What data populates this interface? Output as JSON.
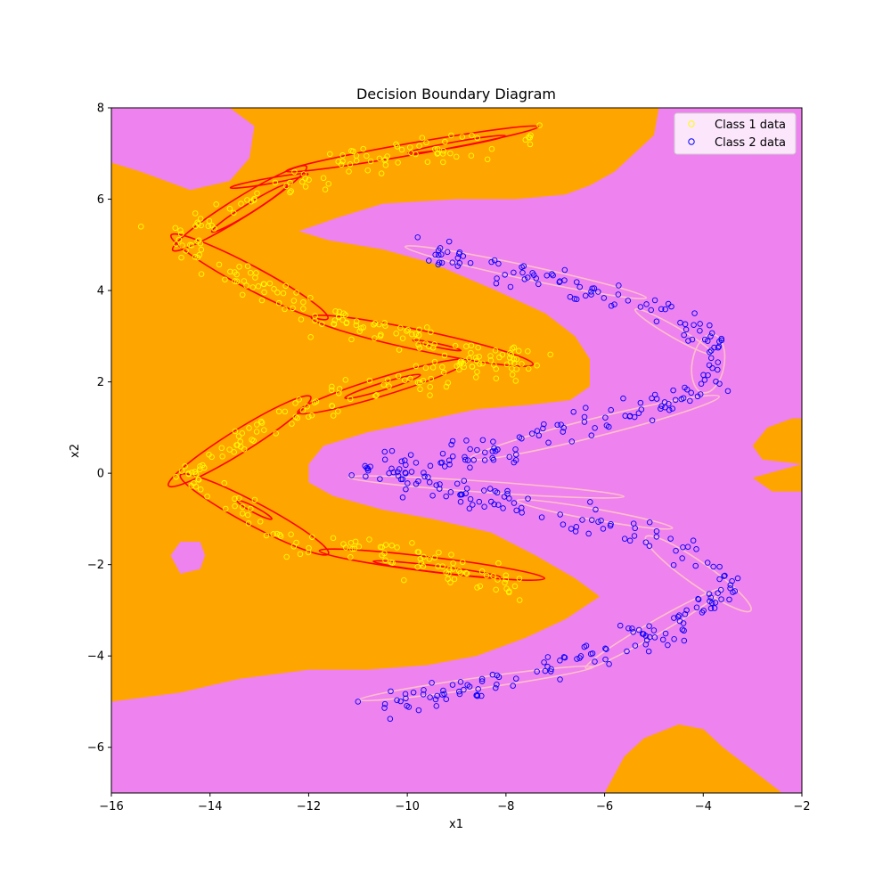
{
  "chart_data": {
    "type": "scatter",
    "title": "Decision Boundary Diagram",
    "xlabel": "x1",
    "ylabel": "x2",
    "xlim": [
      -16,
      -2
    ],
    "ylim": [
      -7,
      8
    ],
    "xticks": [
      -16,
      -14,
      -12,
      -10,
      -8,
      -6,
      -4,
      -2
    ],
    "yticks": [
      -6,
      -4,
      -2,
      0,
      2,
      4,
      6,
      8
    ],
    "xtick_labels": [
      "−16",
      "−14",
      "−12",
      "−10",
      "−8",
      "−6",
      "−4",
      "−2"
    ],
    "ytick_labels": [
      "−6",
      "−4",
      "−2",
      "0",
      "2",
      "4",
      "6",
      "8"
    ],
    "grid": false,
    "legend_position": "top-right",
    "background_color": "#ee82ee",
    "region_colors": {
      "class1": "#ffa500",
      "class2": "#ee82ee"
    },
    "class1_regions": [
      [
        [
          -16,
          6.8
        ],
        [
          -15.4,
          6.6
        ],
        [
          -14.9,
          6.4
        ],
        [
          -14.4,
          6.2
        ],
        [
          -13.6,
          6.4
        ],
        [
          -13.2,
          6.9
        ],
        [
          -13.1,
          7.6
        ],
        [
          -13.6,
          8
        ],
        [
          -4.9,
          8
        ],
        [
          -5.0,
          7.4
        ],
        [
          -5.8,
          6.6
        ],
        [
          -6.3,
          6.3
        ],
        [
          -6.8,
          6.1
        ],
        [
          -7.8,
          6.0
        ],
        [
          -9.0,
          6.0
        ],
        [
          -10.5,
          5.9
        ],
        [
          -11.4,
          5.6
        ],
        [
          -12.2,
          5.3
        ],
        [
          -11.6,
          5.1
        ],
        [
          -10.5,
          4.9
        ],
        [
          -9.5,
          4.6
        ],
        [
          -8.2,
          4.0
        ],
        [
          -7.2,
          3.5
        ],
        [
          -6.6,
          3.0
        ],
        [
          -6.3,
          2.5
        ],
        [
          -6.3,
          1.9
        ],
        [
          -6.7,
          1.6
        ],
        [
          -7.5,
          1.5
        ],
        [
          -8.6,
          1.4
        ],
        [
          -9.9,
          1.1
        ],
        [
          -10.8,
          0.9
        ],
        [
          -11.7,
          0.6
        ],
        [
          -12.0,
          0.2
        ],
        [
          -12.0,
          -0.2
        ],
        [
          -11.5,
          -0.5
        ],
        [
          -10.5,
          -0.8
        ],
        [
          -9.5,
          -1.0
        ],
        [
          -8.3,
          -1.3
        ],
        [
          -7.4,
          -1.8
        ],
        [
          -6.6,
          -2.3
        ],
        [
          -6.1,
          -2.7
        ],
        [
          -6.8,
          -3.2
        ],
        [
          -7.6,
          -3.6
        ],
        [
          -8.6,
          -4.0
        ],
        [
          -9.6,
          -4.2
        ],
        [
          -10.8,
          -4.3
        ],
        [
          -12.0,
          -4.3
        ],
        [
          -13.4,
          -4.5
        ],
        [
          -14.6,
          -4.8
        ],
        [
          -16,
          -5.0
        ]
      ],
      [
        [
          -16,
          -5.0
        ],
        [
          -16,
          6.8
        ],
        [
          -16,
          -5.0
        ]
      ],
      [
        [
          -2,
          0.2
        ],
        [
          -2.8,
          0.3
        ],
        [
          -3.0,
          0.6
        ],
        [
          -2.7,
          1.0
        ],
        [
          -2.2,
          1.2
        ],
        [
          -2,
          1.2
        ],
        [
          -2,
          -0.4
        ],
        [
          -2.6,
          -0.4
        ],
        [
          -3.0,
          -0.1
        ]
      ],
      [
        [
          -6.0,
          -7
        ],
        [
          -5.6,
          -6.2
        ],
        [
          -5.2,
          -5.8
        ],
        [
          -4.5,
          -5.5
        ],
        [
          -4.0,
          -5.6
        ],
        [
          -3.6,
          -6.0
        ],
        [
          -3.0,
          -6.5
        ],
        [
          -2.4,
          -7
        ]
      ]
    ],
    "class2_islands": [
      [
        [
          -14.8,
          -1.8
        ],
        [
          -14.6,
          -1.5
        ],
        [
          -14.2,
          -1.5
        ],
        [
          -14.1,
          -1.8
        ],
        [
          -14.2,
          -2.1
        ],
        [
          -14.6,
          -2.2
        ]
      ]
    ],
    "class1_arms": [
      [
        -7.5,
        7.5
      ],
      [
        -12.2,
        6.5
      ],
      [
        -14.8,
        5.1
      ],
      [
        -12.0,
        3.5
      ],
      [
        -11.0,
        3.2
      ],
      [
        -7.6,
        2.4
      ],
      [
        -9.2,
        2.3
      ],
      [
        -12.0,
        1.4
      ],
      [
        -14.6,
        0.0
      ],
      [
        -12.2,
        -1.5
      ],
      [
        -11.0,
        -1.7
      ],
      [
        -7.6,
        -2.5
      ]
    ],
    "class2_arms": [
      [
        -9.8,
        4.9
      ],
      [
        -5.2,
        3.7
      ],
      [
        -3.6,
        2.8
      ],
      [
        -4.0,
        1.8
      ],
      [
        -8.5,
        0.4
      ],
      [
        -11.0,
        0.1
      ],
      [
        -8.0,
        -0.6
      ],
      [
        -5.0,
        -1.4
      ],
      [
        -3.4,
        -2.4
      ],
      [
        -4.5,
        -3.4
      ],
      [
        -8.2,
        -4.6
      ],
      [
        -10.5,
        -5.0
      ]
    ],
    "class1_contours": [
      {
        "cx": -9.9,
        "cy": 7.1,
        "rx": 2.6,
        "ry": 0.13,
        "angle": 10
      },
      {
        "cx": -9.0,
        "cy": 7.2,
        "rx": 1.0,
        "ry": 0.06,
        "angle": 10
      },
      {
        "cx": -12.8,
        "cy": 6.4,
        "rx": 0.8,
        "ry": 0.06,
        "angle": 10
      },
      {
        "cx": -13.4,
        "cy": 5.8,
        "rx": 1.6,
        "ry": 0.22,
        "angle": 32
      },
      {
        "cx": -13.2,
        "cy": 5.8,
        "rx": 0.9,
        "ry": 0.1,
        "angle": 32
      },
      {
        "cx": -13.2,
        "cy": 4.3,
        "rx": 1.8,
        "ry": 0.25,
        "angle": -28
      },
      {
        "cx": -9.7,
        "cy": 2.9,
        "rx": 2.3,
        "ry": 0.22,
        "angle": -12
      },
      {
        "cx": -9.4,
        "cy": 2.8,
        "rx": 0.5,
        "ry": 0.04,
        "angle": -12
      },
      {
        "cx": -10.5,
        "cy": 1.9,
        "rx": 1.8,
        "ry": 0.2,
        "angle": 17
      },
      {
        "cx": -10.5,
        "cy": 1.9,
        "rx": 0.8,
        "ry": 0.08,
        "angle": 17
      },
      {
        "cx": -13.4,
        "cy": 0.7,
        "rx": 1.7,
        "ry": 0.25,
        "angle": 32
      },
      {
        "cx": -13.1,
        "cy": -0.9,
        "rx": 1.7,
        "ry": 0.25,
        "angle": -28
      },
      {
        "cx": -13.1,
        "cy": -0.8,
        "rx": 0.4,
        "ry": 0.06,
        "angle": -28
      },
      {
        "cx": -9.5,
        "cy": -2.0,
        "rx": 2.3,
        "ry": 0.16,
        "angle": -7
      },
      {
        "cx": -9.4,
        "cy": -2.1,
        "rx": 1.3,
        "ry": 0.07,
        "angle": -7
      }
    ],
    "class2_contours": [
      {
        "cx": -7.6,
        "cy": 4.4,
        "rx": 2.5,
        "ry": 0.15,
        "angle": -12
      },
      {
        "cx": -4.6,
        "cy": 3.1,
        "rx": 0.9,
        "ry": 0.12,
        "angle": -30
      },
      {
        "cx": -3.9,
        "cy": 2.4,
        "rx": 0.6,
        "ry": 0.35,
        "angle": 80
      },
      {
        "cx": -6.2,
        "cy": 1.0,
        "rx": 2.6,
        "ry": 0.2,
        "angle": 14
      },
      {
        "cx": -8.4,
        "cy": -0.3,
        "rx": 2.8,
        "ry": 0.12,
        "angle": -4
      },
      {
        "cx": -6.2,
        "cy": -0.9,
        "rx": 1.6,
        "ry": 0.12,
        "angle": -10
      },
      {
        "cx": -4.1,
        "cy": -2.2,
        "rx": 1.3,
        "ry": 0.25,
        "angle": -35
      },
      {
        "cx": -5.0,
        "cy": -3.4,
        "rx": 1.6,
        "ry": 0.15,
        "angle": 30
      },
      {
        "cx": -8.6,
        "cy": -4.6,
        "rx": 2.4,
        "ry": 0.12,
        "angle": 8
      }
    ],
    "series": [
      {
        "name": "Class 1 data",
        "marker_color": "#ffff00",
        "count": 420,
        "spread": 0.17,
        "seed": 11
      },
      {
        "name": "Class 2 data",
        "marker_color": "#0000ff",
        "count": 420,
        "spread": 0.15,
        "seed": 29
      }
    ],
    "extra_points": {
      "class1": [
        [
          -15.4,
          5.4
        ],
        [
          -7.1,
          2.6
        ],
        [
          -7.5,
          7.4
        ]
      ],
      "class2": [
        [
          -11.0,
          -5.0
        ],
        [
          -3.3,
          -2.3
        ],
        [
          -3.5,
          1.8
        ],
        [
          -10.8,
          0.1
        ]
      ]
    }
  }
}
